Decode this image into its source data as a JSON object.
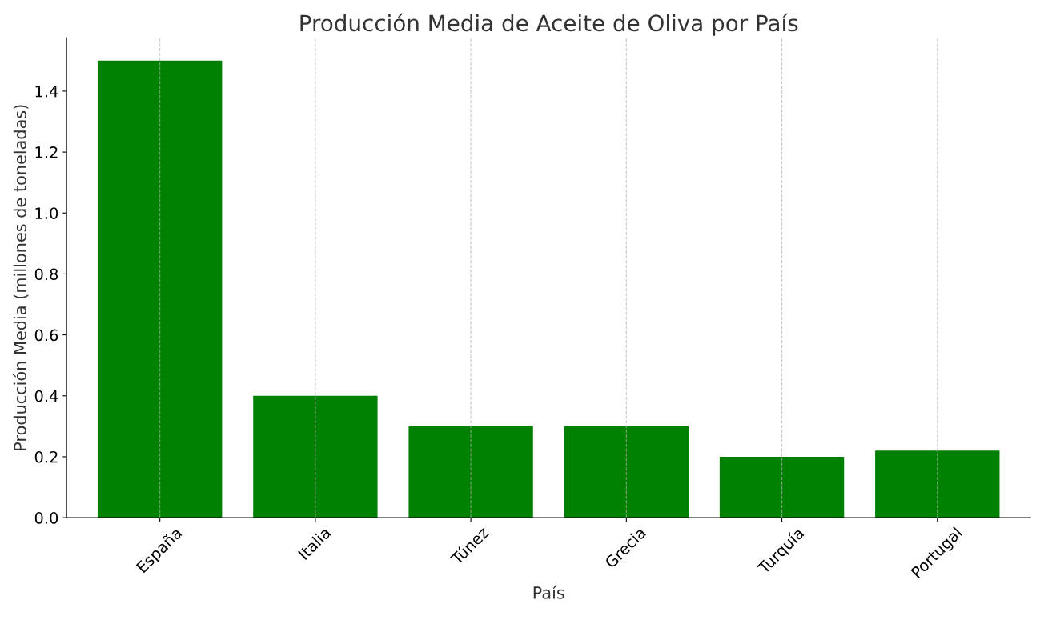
{
  "chart_data": {
    "type": "bar",
    "title": "Producción Media de Aceite de Oliva por País",
    "xlabel": "País",
    "ylabel": "Producción Media (millones de toneladas)",
    "categories": [
      "España",
      "Italia",
      "Túnez",
      "Grecia",
      "Turquía",
      "Portugal"
    ],
    "values": [
      1.5,
      0.4,
      0.3,
      0.3,
      0.2,
      0.22
    ],
    "color": "#008000",
    "ylim": [
      0,
      1.575
    ],
    "yticks": [
      {
        "value": 0,
        "label": "0.0"
      },
      0.2,
      0.4,
      0.6,
      0.8,
      {
        "value": 1,
        "label": "1.0"
      },
      1.2,
      1.4
    ],
    "grid": "x"
  }
}
